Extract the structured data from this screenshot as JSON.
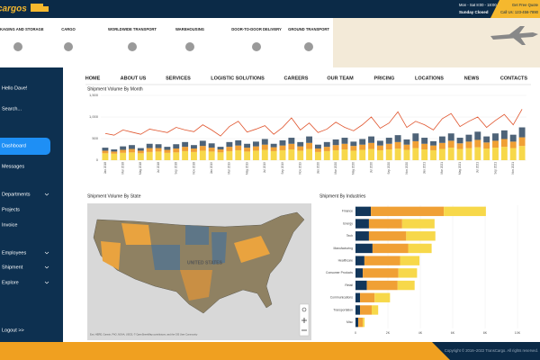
{
  "header": {
    "logo": "cargos",
    "hours": "Mon - Sat 8:00 - 18:00",
    "closed": "Sunday Closed",
    "quote": "Get Free Quote",
    "phone": "Call Us: 123-456-7890"
  },
  "services": [
    "PACKAGING AND STORAGE",
    "CARGO",
    "WORLDWIDE TRANSPORT",
    "WAREHOUSING",
    "DOOR-TO-DOOR DELIVERY",
    "GROUND TRANSPORT"
  ],
  "sidebar": {
    "greeting": "Hello Dave!",
    "search": "Search...",
    "items": [
      "Dashboard",
      "Messages",
      "Departments",
      "Projects",
      "Invoice",
      "Employees",
      "Shipment",
      "Explore",
      "Logout >>"
    ]
  },
  "nav": [
    "HOME",
    "ABOUT US",
    "SERVICES",
    "LOGISTIC SOLUTIONS",
    "CAREERS",
    "OUR TEAM",
    "PRICING",
    "LOCATIONS",
    "NEWS",
    "CONTACTS"
  ],
  "map": {
    "title": "Shipment Volume By State",
    "label": "UNITED STATES",
    "attribution": "Esri, HERE, Garmin, FAO, NOAA, USGS, © OpenStreetMap contributors, and the GIS User Community"
  },
  "chart_data": [
    {
      "type": "bar",
      "title": "Shipment Volume By Month",
      "categories": [
        "Jan 2018",
        null,
        "Mar 2018",
        null,
        "May 2018",
        null,
        "Jul 2018",
        null,
        "Sep 2018",
        null,
        "Nov 2018",
        null,
        "Jan 2019",
        null,
        "Mar 2019",
        null,
        "May 2019",
        null,
        "Jul 2019",
        null,
        "Sep 2019",
        null,
        "Nov 2019",
        null,
        "Jan 2020",
        null,
        "Mar 2020",
        null,
        "May 2020",
        null,
        "Jul 2020",
        null,
        "Sep 2020",
        null,
        "Nov 2020",
        null,
        "Jan 2021",
        null,
        "Mar 2021",
        null,
        "May 2021",
        null,
        "Jul 2021",
        null,
        "Sep 2021",
        null,
        "Nov 2021",
        null
      ],
      "series": [
        {
          "color": "#f7d84a",
          "values": [
            160,
            150,
            170,
            180,
            160,
            190,
            200,
            170,
            180,
            210,
            190,
            220,
            200,
            180,
            210,
            230,
            200,
            220,
            240,
            210,
            230,
            250,
            220,
            260,
            190,
            210,
            230,
            250,
            220,
            240,
            260,
            230,
            250,
            270,
            240,
            280,
            250,
            230,
            260,
            290,
            260,
            280,
            300,
            270,
            290,
            310,
            280,
            330
          ]
        },
        {
          "color": "#f0a035",
          "values": [
            60,
            50,
            70,
            80,
            60,
            90,
            80,
            70,
            90,
            100,
            80,
            110,
            90,
            70,
            100,
            110,
            90,
            100,
            120,
            90,
            110,
            130,
            100,
            140,
            80,
            100,
            120,
            130,
            110,
            120,
            140,
            110,
            130,
            150,
            120,
            160,
            130,
            110,
            140,
            160,
            130,
            150,
            170,
            140,
            160,
            180,
            150,
            200
          ]
        },
        {
          "color": "#4e6378",
          "values": [
            70,
            50,
            80,
            90,
            60,
            100,
            90,
            70,
            100,
            110,
            80,
            120,
            100,
            60,
            110,
            120,
            90,
            110,
            130,
            80,
            120,
            140,
            100,
            150,
            90,
            110,
            130,
            140,
            100,
            130,
            150,
            110,
            140,
            160,
            120,
            180,
            140,
            100,
            150,
            170,
            130,
            160,
            190,
            140,
            170,
            200,
            160,
            230
          ]
        },
        {
          "type": "line",
          "color": "#e0552e",
          "values": [
            620,
            580,
            700,
            650,
            600,
            720,
            680,
            640,
            760,
            700,
            660,
            820,
            700,
            560,
            780,
            900,
            650,
            720,
            800,
            600,
            760,
            980,
            700,
            860,
            640,
            720,
            880,
            760,
            680,
            820,
            1000,
            740,
            860,
            1120,
            760,
            900,
            820,
            700,
            960,
            1080,
            780,
            900,
            1000,
            760,
            920,
            1060,
            820,
            1180
          ]
        }
      ],
      "ylim": [
        0,
        1500
      ],
      "yticks": [
        0,
        500,
        {
          "value": 1000,
          "label": "1,000"
        },
        {
          "value": 1500,
          "label": "1,500"
        }
      ],
      "grid": true
    },
    {
      "type": "barh",
      "title": "Shipment By Industries",
      "categories": [
        "Finance",
        "Energy",
        "Tech",
        "Manufacturing",
        "Healthcare",
        "Consumer Products",
        "Retail",
        "Communications",
        "Transportation",
        "Misc"
      ],
      "series": [
        {
          "color": "#12365a",
          "values": [
            950,
            830,
            830,
            1050,
            550,
            450,
            700,
            280,
            280,
            170
          ]
        },
        {
          "color": "#f0a035",
          "values": [
            4500,
            2050,
            2300,
            2200,
            2200,
            2200,
            1900,
            900,
            720,
            280
          ]
        },
        {
          "color": "#f7d84a",
          "values": [
            2600,
            2000,
            1800,
            1450,
            1200,
            1150,
            1050,
            950,
            400,
            110
          ]
        }
      ],
      "xlim": [
        0,
        10000
      ],
      "xticks": [
        0,
        {
          "value": 2000,
          "label": "2K"
        },
        {
          "value": 4000,
          "label": "4K"
        },
        {
          "value": 6000,
          "label": "6K"
        },
        {
          "value": 8000,
          "label": "8K"
        },
        {
          "value": 10000,
          "label": "10K"
        }
      ],
      "grid": true
    }
  ],
  "footer": {
    "copyright": "Copyright © 2016–2022 TransCargo. All rights reserved."
  }
}
